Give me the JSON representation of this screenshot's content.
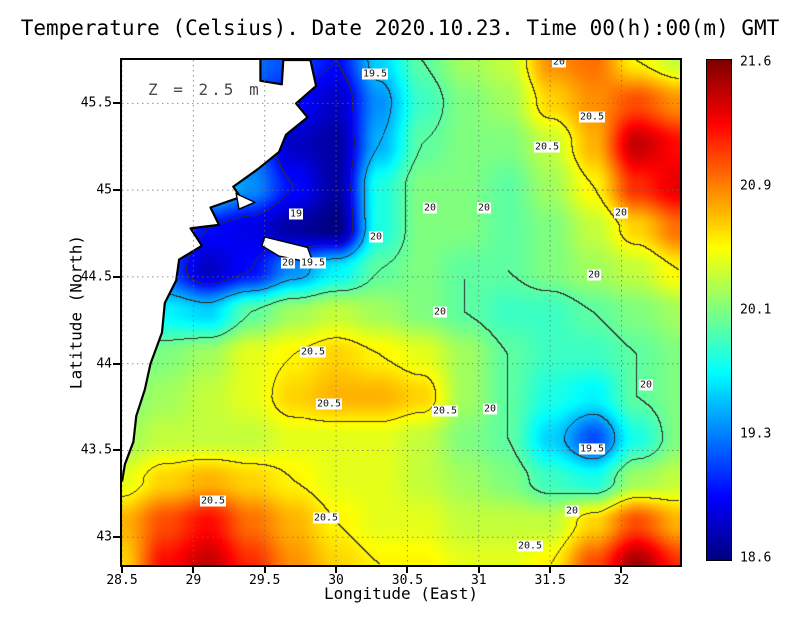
{
  "title": "Temperature (Celsius). Date 2020.10.23. Time 00(h):00(m) GMT",
  "annotation": "Z = 2.5 m",
  "axes": {
    "x_label": "Longitude (East)",
    "y_label": "Latitude (North)",
    "x_ticks": [
      "28.5",
      "29",
      "29.5",
      "30",
      "30.5",
      "31",
      "31.5",
      "32"
    ],
    "y_ticks": [
      "45.5",
      "45",
      "44.5",
      "44",
      "43.5",
      "43"
    ]
  },
  "colorbar": {
    "labels": [
      "21.6",
      "20.9",
      "20.1",
      "19.3",
      "18.6"
    ],
    "min": 18.6,
    "max": 21.6,
    "colormap": "jet"
  },
  "chart_data": {
    "type": "heatmap",
    "title": "Temperature (Celsius). Date 2020.10.23. Time 00(h):00(m) GMT",
    "xlabel": "Longitude (East)",
    "ylabel": "Latitude (North)",
    "units": "Celsius",
    "x_range": [
      28.5,
      32.41
    ],
    "y_range": [
      42.84,
      45.75
    ],
    "value_range": [
      18.6,
      21.6
    ],
    "contour_levels": [
      19,
      19.5,
      20,
      20.5
    ],
    "lon": [
      28.5,
      28.8,
      29.1,
      29.4,
      29.7,
      30.0,
      30.3,
      30.6,
      30.9,
      31.2,
      31.5,
      31.8,
      32.1,
      32.4
    ],
    "lat": [
      45.75,
      45.51,
      45.27,
      45.03,
      44.79,
      44.55,
      44.31,
      44.07,
      43.83,
      43.59,
      43.35,
      43.11,
      42.87
    ],
    "values": [
      [
        19.5,
        19.5,
        19.5,
        19.3,
        19.2,
        19.0,
        19.6,
        20.0,
        20.2,
        20.3,
        20.8,
        20.9,
        20.5,
        20.3
      ],
      [
        19.5,
        19.5,
        19.4,
        19.2,
        19.0,
        18.8,
        19.4,
        19.9,
        20.1,
        20.2,
        20.6,
        20.8,
        21.0,
        20.8
      ],
      [
        19.6,
        19.6,
        19.5,
        19.3,
        18.8,
        18.7,
        19.5,
        20.0,
        20.1,
        20.1,
        20.3,
        20.7,
        21.4,
        21.2
      ],
      [
        19.8,
        19.8,
        19.7,
        19.4,
        19.0,
        18.7,
        19.8,
        20.1,
        20.1,
        20.0,
        20.2,
        20.5,
        21.1,
        21.3
      ],
      [
        19.6,
        19.3,
        19.0,
        18.9,
        18.7,
        18.6,
        19.8,
        20.1,
        20.1,
        20.0,
        20.1,
        20.3,
        20.6,
        20.9
      ],
      [
        19.8,
        19.2,
        18.8,
        19.0,
        19.4,
        19.7,
        20.0,
        20.1,
        20.0,
        20.0,
        20.1,
        20.2,
        20.3,
        20.5
      ],
      [
        19.9,
        19.7,
        19.6,
        20.0,
        20.2,
        20.3,
        20.2,
        20.1,
        20.0,
        19.9,
        19.9,
        20.0,
        20.1,
        20.2
      ],
      [
        20.0,
        20.1,
        20.2,
        20.4,
        20.5,
        20.6,
        20.5,
        20.4,
        20.2,
        20.0,
        19.9,
        19.9,
        20.0,
        20.1
      ],
      [
        20.1,
        20.2,
        20.3,
        20.4,
        20.6,
        20.7,
        20.7,
        20.6,
        20.2,
        20.0,
        19.8,
        19.7,
        20.0,
        20.1
      ],
      [
        20.2,
        20.3,
        20.3,
        20.3,
        20.4,
        20.4,
        20.4,
        20.3,
        20.1,
        20.0,
        19.6,
        19.2,
        19.8,
        20.1
      ],
      [
        20.4,
        20.6,
        20.7,
        20.6,
        20.5,
        20.4,
        20.4,
        20.3,
        20.2,
        20.1,
        19.9,
        19.8,
        20.2,
        20.3
      ],
      [
        20.7,
        21.0,
        21.2,
        20.9,
        20.7,
        20.5,
        20.4,
        20.4,
        20.3,
        20.3,
        20.3,
        20.6,
        21.0,
        20.7
      ],
      [
        20.6,
        21.2,
        21.4,
        21.1,
        20.8,
        20.6,
        20.5,
        20.5,
        20.4,
        20.4,
        20.5,
        21.0,
        21.5,
        21.1
      ]
    ],
    "coastline": [
      [
        28.5,
        45.75
      ],
      [
        29.47,
        45.75
      ],
      [
        29.47,
        45.63
      ],
      [
        29.62,
        45.61
      ],
      [
        29.63,
        45.75
      ],
      [
        29.82,
        45.75
      ],
      [
        29.86,
        45.6
      ],
      [
        29.72,
        45.5
      ],
      [
        29.8,
        45.42
      ],
      [
        29.65,
        45.32
      ],
      [
        29.6,
        45.22
      ],
      [
        29.45,
        45.12
      ],
      [
        29.28,
        45.02
      ],
      [
        29.33,
        44.96
      ],
      [
        29.12,
        44.9
      ],
      [
        29.18,
        44.8
      ],
      [
        28.98,
        44.78
      ],
      [
        29.06,
        44.68
      ],
      [
        28.9,
        44.6
      ],
      [
        28.88,
        44.48
      ],
      [
        28.8,
        44.35
      ],
      [
        28.78,
        44.18
      ],
      [
        28.7,
        44.0
      ],
      [
        28.66,
        43.85
      ],
      [
        28.6,
        43.7
      ],
      [
        28.58,
        43.55
      ],
      [
        28.52,
        43.42
      ],
      [
        28.5,
        43.32
      ]
    ],
    "islands": [
      [
        [
          29.5,
          44.73
        ],
        [
          29.8,
          44.67
        ],
        [
          29.84,
          44.58
        ],
        [
          29.6,
          44.62
        ],
        [
          29.48,
          44.68
        ]
      ],
      [
        [
          29.3,
          44.98
        ],
        [
          29.43,
          44.93
        ],
        [
          29.32,
          44.89
        ]
      ]
    ],
    "contour_labels": [
      {
        "text": "19.5",
        "lon": 30.27,
        "lat": 45.67
      },
      {
        "text": "20",
        "lon": 31.56,
        "lat": 45.74
      },
      {
        "text": "20.5",
        "lon": 31.79,
        "lat": 45.42
      },
      {
        "text": "20.5",
        "lon": 31.48,
        "lat": 45.25
      },
      {
        "text": "19",
        "lon": 29.72,
        "lat": 44.86
      },
      {
        "text": "20",
        "lon": 30.66,
        "lat": 44.9
      },
      {
        "text": "20",
        "lon": 31.04,
        "lat": 44.9
      },
      {
        "text": "20",
        "lon": 32.0,
        "lat": 44.87
      },
      {
        "text": "20",
        "lon": 30.28,
        "lat": 44.73
      },
      {
        "text": "20",
        "lon": 29.66,
        "lat": 44.58
      },
      {
        "text": "19.5",
        "lon": 29.84,
        "lat": 44.58
      },
      {
        "text": "20",
        "lon": 31.81,
        "lat": 44.51
      },
      {
        "text": "20",
        "lon": 30.73,
        "lat": 44.3
      },
      {
        "text": "20.5",
        "lon": 29.84,
        "lat": 44.07
      },
      {
        "text": "20.5",
        "lon": 29.95,
        "lat": 43.77
      },
      {
        "text": "20.5",
        "lon": 30.76,
        "lat": 43.73
      },
      {
        "text": "20",
        "lon": 31.08,
        "lat": 43.74
      },
      {
        "text": "20",
        "lon": 32.17,
        "lat": 43.88
      },
      {
        "text": "19.5",
        "lon": 31.79,
        "lat": 43.51
      },
      {
        "text": "20.5",
        "lon": 29.14,
        "lat": 43.21
      },
      {
        "text": "20.5",
        "lon": 29.93,
        "lat": 43.11
      },
      {
        "text": "20",
        "lon": 31.65,
        "lat": 43.15
      },
      {
        "text": "20.5",
        "lon": 31.36,
        "lat": 42.95
      }
    ]
  }
}
